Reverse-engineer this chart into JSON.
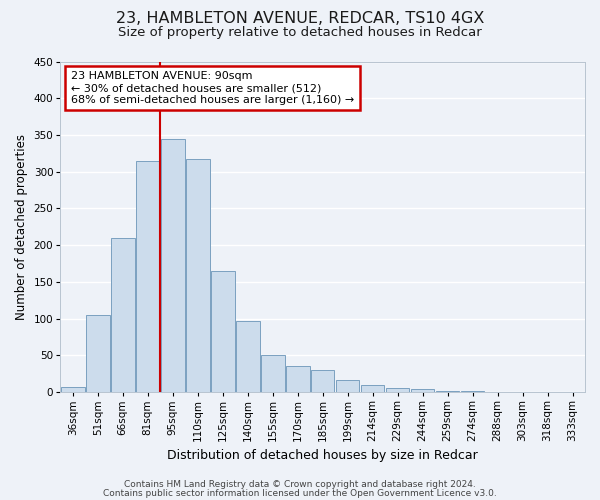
{
  "title": "23, HAMBLETON AVENUE, REDCAR, TS10 4GX",
  "subtitle": "Size of property relative to detached houses in Redcar",
  "xlabel": "Distribution of detached houses by size in Redcar",
  "ylabel": "Number of detached properties",
  "bar_labels": [
    "36sqm",
    "51sqm",
    "66sqm",
    "81sqm",
    "95sqm",
    "110sqm",
    "125sqm",
    "140sqm",
    "155sqm",
    "170sqm",
    "185sqm",
    "199sqm",
    "214sqm",
    "229sqm",
    "244sqm",
    "259sqm",
    "274sqm",
    "288sqm",
    "303sqm",
    "318sqm",
    "333sqm"
  ],
  "bar_values": [
    7,
    105,
    210,
    315,
    345,
    317,
    165,
    97,
    50,
    36,
    30,
    17,
    9,
    5,
    4,
    1,
    1,
    0,
    0,
    0,
    0
  ],
  "bar_color": "#ccdcec",
  "bar_edge_color": "#7aA0c0",
  "background_color": "#eef2f8",
  "grid_color": "#ffffff",
  "vline_x": 3.5,
  "vline_color": "#cc0000",
  "annotation_title": "23 HAMBLETON AVENUE: 90sqm",
  "annotation_line1": "← 30% of detached houses are smaller (512)",
  "annotation_line2": "68% of semi-detached houses are larger (1,160) →",
  "annotation_box_color": "#cc0000",
  "ylim": [
    0,
    450
  ],
  "yticks": [
    0,
    50,
    100,
    150,
    200,
    250,
    300,
    350,
    400,
    450
  ],
  "footer_line1": "Contains HM Land Registry data © Crown copyright and database right 2024.",
  "footer_line2": "Contains public sector information licensed under the Open Government Licence v3.0.",
  "title_fontsize": 11.5,
  "subtitle_fontsize": 9.5,
  "ylabel_fontsize": 8.5,
  "xlabel_fontsize": 9,
  "tick_fontsize": 7.5,
  "annotation_fontsize": 8,
  "footer_fontsize": 6.5
}
